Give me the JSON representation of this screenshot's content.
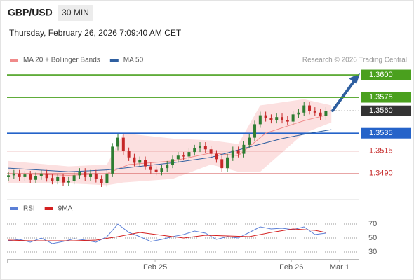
{
  "header": {
    "symbol": "GBP/USD",
    "interval": "30 MIN",
    "timestamp": "Thursday, February 26, 2026 7:09:40 AM CET",
    "source": "Research © 2026 Trading Central"
  },
  "chart_data": [
    {
      "type": "candlestick",
      "xlim": [
        -0.26,
        64.1
      ],
      "ylim": [
        1.34625,
        1.36094
      ],
      "xticks": [
        {
          "value": 26.8,
          "label": "Feb 25"
        },
        {
          "value": 51.7,
          "label": "Feb 26"
        },
        {
          "value": 60.5,
          "label": "Mar 1"
        }
      ],
      "up_color": "#2e7d32",
      "down_color": "#c62828",
      "x": [
        0,
        1,
        2,
        3,
        4,
        5,
        6,
        7,
        8,
        9,
        10,
        11,
        12,
        13,
        14,
        15,
        16,
        17,
        18,
        19,
        20,
        21,
        22,
        23,
        24,
        25,
        26,
        27,
        28,
        29,
        30,
        31,
        32,
        33,
        34,
        35,
        36,
        37,
        38,
        39,
        40,
        41,
        42,
        43,
        44,
        45,
        46,
        47,
        48,
        49,
        50,
        51,
        52,
        53,
        54,
        55,
        56,
        57,
        58
      ],
      "open": [
        1.3486,
        1.3488,
        1.349,
        1.3486,
        1.3489,
        1.3483,
        1.3487,
        1.349,
        1.3485,
        1.3482,
        1.3486,
        1.348,
        1.3482,
        1.3488,
        1.3492,
        1.3486,
        1.349,
        1.3484,
        1.3479,
        1.349,
        1.352,
        1.353,
        1.3515,
        1.3508,
        1.3502,
        1.3505,
        1.3498,
        1.3494,
        1.3492,
        1.3496,
        1.35,
        1.3506,
        1.351,
        1.3509,
        1.3514,
        1.3518,
        1.3521,
        1.3517,
        1.3512,
        1.3506,
        1.3496,
        1.3508,
        1.3516,
        1.3512,
        1.3522,
        1.353,
        1.3545,
        1.3555,
        1.3552,
        1.355,
        1.3553,
        1.355,
        1.3548,
        1.3556,
        1.3558,
        1.3566,
        1.356,
        1.3558,
        1.3554
      ],
      "high": [
        1.3492,
        1.3494,
        1.3494,
        1.3493,
        1.3493,
        1.3491,
        1.3494,
        1.3494,
        1.3489,
        1.349,
        1.349,
        1.3486,
        1.3492,
        1.3496,
        1.3496,
        1.3494,
        1.3494,
        1.3488,
        1.3494,
        1.3524,
        1.3534,
        1.3534,
        1.3519,
        1.3512,
        1.3509,
        1.3509,
        1.3502,
        1.3498,
        1.35,
        1.3504,
        1.351,
        1.3514,
        1.3514,
        1.3518,
        1.3522,
        1.3525,
        1.3525,
        1.3521,
        1.3516,
        1.351,
        1.3512,
        1.352,
        1.352,
        1.3526,
        1.3534,
        1.3549,
        1.3559,
        1.3559,
        1.3556,
        1.3557,
        1.3557,
        1.3554,
        1.356,
        1.3562,
        1.357,
        1.357,
        1.3564,
        1.3562,
        1.3564
      ],
      "low": [
        1.3482,
        1.3484,
        1.3482,
        1.3482,
        1.3479,
        1.3479,
        1.3483,
        1.3481,
        1.3478,
        1.3478,
        1.3476,
        1.3476,
        1.3478,
        1.3484,
        1.3482,
        1.3482,
        1.348,
        1.3475,
        1.3475,
        1.3486,
        1.3516,
        1.3511,
        1.3504,
        1.3498,
        1.3498,
        1.3494,
        1.349,
        1.3488,
        1.3488,
        1.3492,
        1.3496,
        1.3502,
        1.3505,
        1.3505,
        1.351,
        1.3514,
        1.3513,
        1.3508,
        1.3502,
        1.3492,
        1.3492,
        1.3504,
        1.3508,
        1.3508,
        1.3518,
        1.3526,
        1.3541,
        1.3548,
        1.3546,
        1.3546,
        1.3546,
        1.3544,
        1.3544,
        1.3552,
        1.3554,
        1.3556,
        1.3554,
        1.355,
        1.355
      ],
      "close": [
        1.3488,
        1.349,
        1.3486,
        1.3489,
        1.3483,
        1.3487,
        1.349,
        1.3485,
        1.3482,
        1.3486,
        1.348,
        1.3482,
        1.3488,
        1.3492,
        1.3486,
        1.349,
        1.3484,
        1.3479,
        1.349,
        1.352,
        1.353,
        1.3515,
        1.3508,
        1.3502,
        1.3505,
        1.3498,
        1.3494,
        1.3492,
        1.3496,
        1.35,
        1.3506,
        1.351,
        1.3509,
        1.3514,
        1.3518,
        1.3521,
        1.3517,
        1.3512,
        1.3506,
        1.3496,
        1.3508,
        1.3516,
        1.3512,
        1.3522,
        1.353,
        1.3545,
        1.3555,
        1.3552,
        1.355,
        1.3553,
        1.355,
        1.3548,
        1.3556,
        1.3558,
        1.3566,
        1.356,
        1.3558,
        1.3554,
        1.356
      ],
      "series": [
        {
          "name": "MA 20 + Bollinger Bands",
          "color": "#f08a8a",
          "x": [
            0,
            11,
            18,
            22,
            30,
            37,
            42,
            47,
            54,
            58
          ],
          "values": [
            1.349,
            1.3488,
            1.349,
            1.35,
            1.3504,
            1.3513,
            1.351,
            1.3535,
            1.3549,
            1.3555
          ]
        },
        {
          "name": "MA 50",
          "color": "#2f5fa0",
          "x": [
            0,
            11,
            18,
            24,
            30,
            37,
            43,
            50,
            55,
            59
          ],
          "values": [
            1.3496,
            1.3492,
            1.3494,
            1.3498,
            1.3502,
            1.3508,
            1.3518,
            1.3529,
            1.3535,
            1.3539
          ]
        }
      ],
      "bands": {
        "color": "#fbd3d3",
        "x": [
          0,
          11,
          18,
          21,
          30,
          37,
          42,
          46,
          54,
          59
        ],
        "upper": [
          1.3504,
          1.3498,
          1.35,
          1.3535,
          1.3529,
          1.3527,
          1.3523,
          1.3566,
          1.3573,
          1.3566
        ],
        "lower": [
          1.3479,
          1.3479,
          1.3477,
          1.348,
          1.3484,
          1.35,
          1.3492,
          1.3492,
          1.3535,
          1.3547
        ]
      },
      "levels": [
        {
          "value": 1.36,
          "label": "1.3600",
          "color": "#4aa01e",
          "filled": true,
          "line": "solid"
        },
        {
          "value": 1.3575,
          "label": "1.3575",
          "color": "#4aa01e",
          "filled": true,
          "line": "solid"
        },
        {
          "value": 1.356,
          "label": "1.3560",
          "color": "#333333",
          "filled": true,
          "line": "dotted"
        },
        {
          "value": 1.3535,
          "label": "1.3535",
          "color": "#2563c9",
          "filled": true,
          "line": "solid"
        },
        {
          "value": 1.3515,
          "label": "1.3515",
          "color": "#c62828",
          "filled": false,
          "line": "solid"
        },
        {
          "value": 1.349,
          "label": "1.3490",
          "color": "#c62828",
          "filled": false,
          "line": "solid"
        }
      ]
    },
    {
      "type": "line",
      "xlim": [
        -0.26,
        64.1
      ],
      "ylim": [
        24,
        76
      ],
      "yticks": [
        70,
        50,
        30
      ],
      "grid": true,
      "series": [
        {
          "name": "RSI",
          "color": "#5b7fd6",
          "x": [
            0,
            2,
            4,
            6,
            8,
            10,
            12,
            14,
            16,
            18,
            20,
            22,
            24,
            26,
            28,
            30,
            32,
            34,
            36,
            38,
            40,
            42,
            44,
            46,
            48,
            50,
            52,
            54,
            56,
            58
          ],
          "values": [
            46,
            48,
            44,
            50,
            42,
            45,
            49,
            47,
            44,
            52,
            70,
            58,
            52,
            45,
            48,
            52,
            55,
            60,
            57,
            48,
            52,
            50,
            58,
            66,
            63,
            64,
            62,
            66,
            55,
            57
          ]
        },
        {
          "name": "9MA",
          "color": "#d42020",
          "x": [
            0,
            4,
            8,
            12,
            16,
            20,
            24,
            28,
            32,
            36,
            40,
            44,
            48,
            52,
            56,
            58
          ],
          "values": [
            47,
            46,
            46,
            46,
            47,
            52,
            58,
            54,
            50,
            54,
            53,
            52,
            58,
            63,
            61,
            58
          ]
        }
      ]
    }
  ]
}
